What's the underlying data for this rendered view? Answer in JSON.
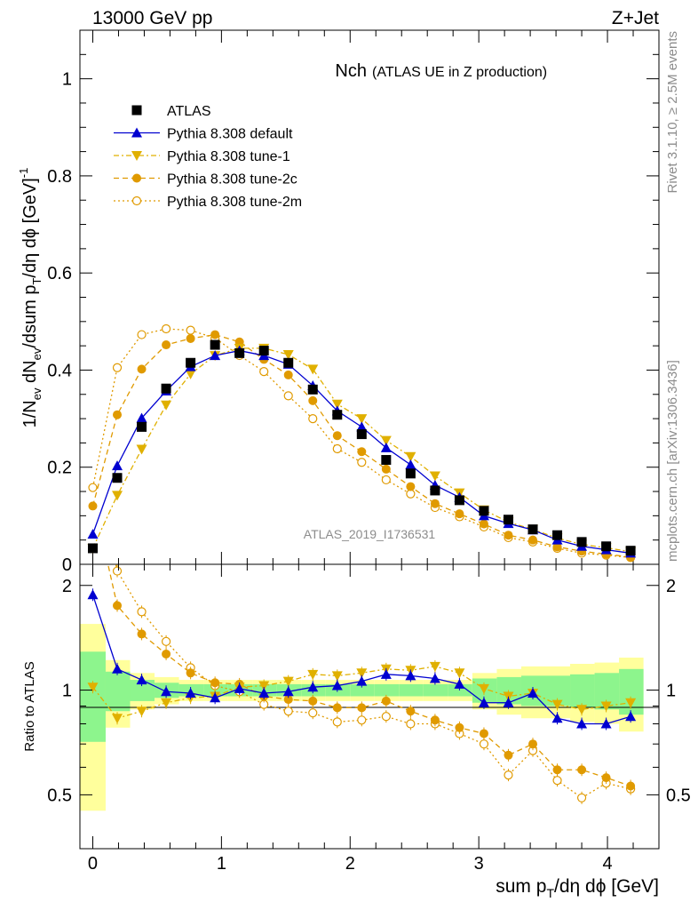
{
  "header": {
    "energy_label": "13000 GeV pp",
    "process_label": "Z+Jet",
    "rivet_label": "Rivet 3.1.10, ≥ 2.5M events",
    "mcplots_label": "mcplots.cern.ch [arXiv:1306.3436]",
    "analysis_label": "ATLAS_2019_I1736531"
  },
  "chart_data": {
    "type": "scatter",
    "title": "Nch",
    "subtitle": "(ATLAS UE in Z production)",
    "xlabel": "sum p_T/dη dϕ [GeV]",
    "ylabel": "1/N_ev dN_ev/dsum p_T/dη dϕ [GeV]^-1",
    "ratio_ylabel": "Ratio to ATLAS",
    "xlim": [
      -0.1,
      4.4
    ],
    "ylim": [
      0,
      1.1
    ],
    "ratio_ylim": [
      0.35,
      2.3
    ],
    "x_ticks": [
      0,
      1,
      2,
      3,
      4
    ],
    "y_ticks": [
      0,
      0.2,
      0.4,
      0.6,
      0.8,
      1
    ],
    "y_tick_labels": [
      "0",
      "0.2",
      "0.4",
      "0.6",
      "0.8",
      "1"
    ],
    "ratio_ticks": [
      0.5,
      1,
      2
    ],
    "legend_position": "top-left",
    "x": [
      0,
      0.19,
      0.38,
      0.57,
      0.76,
      0.95,
      1.14,
      1.33,
      1.52,
      1.71,
      1.9,
      2.09,
      2.28,
      2.47,
      2.66,
      2.85,
      3.04,
      3.23,
      3.42,
      3.61,
      3.8,
      3.99,
      4.18
    ],
    "series": [
      {
        "name": "ATLAS",
        "color": "#000000",
        "marker": "square",
        "values": [
          0.033,
          0.178,
          0.283,
          0.362,
          0.415,
          0.452,
          0.435,
          0.44,
          0.415,
          0.36,
          0.308,
          0.268,
          0.215,
          0.187,
          0.152,
          0.132,
          0.11,
          0.092,
          0.072,
          0.06,
          0.046,
          0.037,
          0.028
        ]
      },
      {
        "name": "Pythia 8.308 default",
        "color": "#0000d0",
        "marker": "triangle-up",
        "dash": "",
        "values": [
          0.062,
          0.203,
          0.301,
          0.357,
          0.407,
          0.43,
          0.44,
          0.43,
          0.412,
          0.368,
          0.316,
          0.283,
          0.24,
          0.205,
          0.163,
          0.138,
          0.1,
          0.084,
          0.071,
          0.05,
          0.037,
          0.03,
          0.023
        ]
      },
      {
        "name": "Pythia 8.308 tune-1",
        "color": "#e0b000",
        "marker": "triangle-down",
        "dash": "6,3,2,3",
        "values": [
          0.033,
          0.142,
          0.237,
          0.328,
          0.392,
          0.43,
          0.445,
          0.445,
          0.432,
          0.402,
          0.33,
          0.3,
          0.255,
          0.222,
          0.182,
          0.147,
          0.112,
          0.087,
          0.072,
          0.054,
          0.041,
          0.034,
          0.026
        ]
      },
      {
        "name": "Pythia 8.308 tune-2c",
        "color": "#e09a00",
        "marker": "circle",
        "dash": "6,4",
        "values": [
          0.12,
          0.308,
          0.402,
          0.452,
          0.465,
          0.473,
          0.458,
          0.422,
          0.39,
          0.337,
          0.265,
          0.232,
          0.196,
          0.16,
          0.125,
          0.104,
          0.083,
          0.06,
          0.05,
          0.036,
          0.027,
          0.021,
          0.015
        ]
      },
      {
        "name": "Pythia 8.308 tune-2m",
        "color": "#e09a00",
        "marker": "circle-open",
        "dash": "2,3",
        "values": [
          0.158,
          0.405,
          0.473,
          0.485,
          0.482,
          0.466,
          0.43,
          0.397,
          0.347,
          0.3,
          0.238,
          0.21,
          0.174,
          0.145,
          0.117,
          0.098,
          0.077,
          0.055,
          0.046,
          0.033,
          0.023,
          0.019,
          0.014
        ]
      }
    ],
    "ratio_series": [
      {
        "name": "Pythia 8.308 default",
        "values": [
          1.88,
          1.15,
          1.07,
          0.99,
          0.98,
          0.95,
          1.01,
          0.98,
          0.99,
          1.02,
          1.03,
          1.06,
          1.11,
          1.1,
          1.08,
          1.04,
          0.92,
          0.92,
          0.98,
          0.83,
          0.8,
          0.8,
          0.84
        ]
      },
      {
        "name": "Pythia 8.308 tune-1",
        "values": [
          1.02,
          0.83,
          0.87,
          0.92,
          0.95,
          0.96,
          1.02,
          1.03,
          1.06,
          1.11,
          1.1,
          1.12,
          1.15,
          1.14,
          1.17,
          1.12,
          1.01,
          0.96,
          0.98,
          0.91,
          0.88,
          0.9,
          0.92
        ]
      },
      {
        "name": "Pythia 8.308 tune-2c",
        "values": [
          3.6,
          1.75,
          1.45,
          1.27,
          1.12,
          1.05,
          1.04,
          0.96,
          0.94,
          0.93,
          0.89,
          0.89,
          0.93,
          0.87,
          0.82,
          0.78,
          0.75,
          0.65,
          0.7,
          0.59,
          0.59,
          0.56,
          0.53
        ]
      },
      {
        "name": "Pythia 8.308 tune-2m",
        "values": [
          4.7,
          2.2,
          1.68,
          1.38,
          1.16,
          1.03,
          0.99,
          0.91,
          0.87,
          0.86,
          0.81,
          0.82,
          0.84,
          0.8,
          0.8,
          0.75,
          0.7,
          0.57,
          0.67,
          0.55,
          0.49,
          0.54,
          0.52
        ]
      }
    ],
    "bands": {
      "inner_color": "#8df58d",
      "outer_color": "#ffff9c",
      "edges": [
        -0.1,
        0.1,
        0.29,
        0.48,
        0.67,
        0.86,
        1.05,
        1.24,
        1.43,
        1.62,
        1.81,
        2.0,
        2.19,
        2.38,
        2.57,
        2.76,
        2.95,
        3.14,
        3.33,
        3.52,
        3.71,
        3.9,
        4.09,
        4.28
      ],
      "inner_halfwidth": [
        0.29,
        0.13,
        0.07,
        0.05,
        0.04,
        0.04,
        0.04,
        0.04,
        0.04,
        0.04,
        0.04,
        0.04,
        0.04,
        0.04,
        0.04,
        0.04,
        0.08,
        0.09,
        0.1,
        0.1,
        0.11,
        0.12,
        0.15
      ],
      "outer_halfwidth": [
        0.55,
        0.22,
        0.12,
        0.09,
        0.07,
        0.07,
        0.07,
        0.07,
        0.07,
        0.07,
        0.07,
        0.07,
        0.07,
        0.07,
        0.07,
        0.07,
        0.12,
        0.15,
        0.17,
        0.17,
        0.19,
        0.2,
        0.24
      ]
    }
  }
}
